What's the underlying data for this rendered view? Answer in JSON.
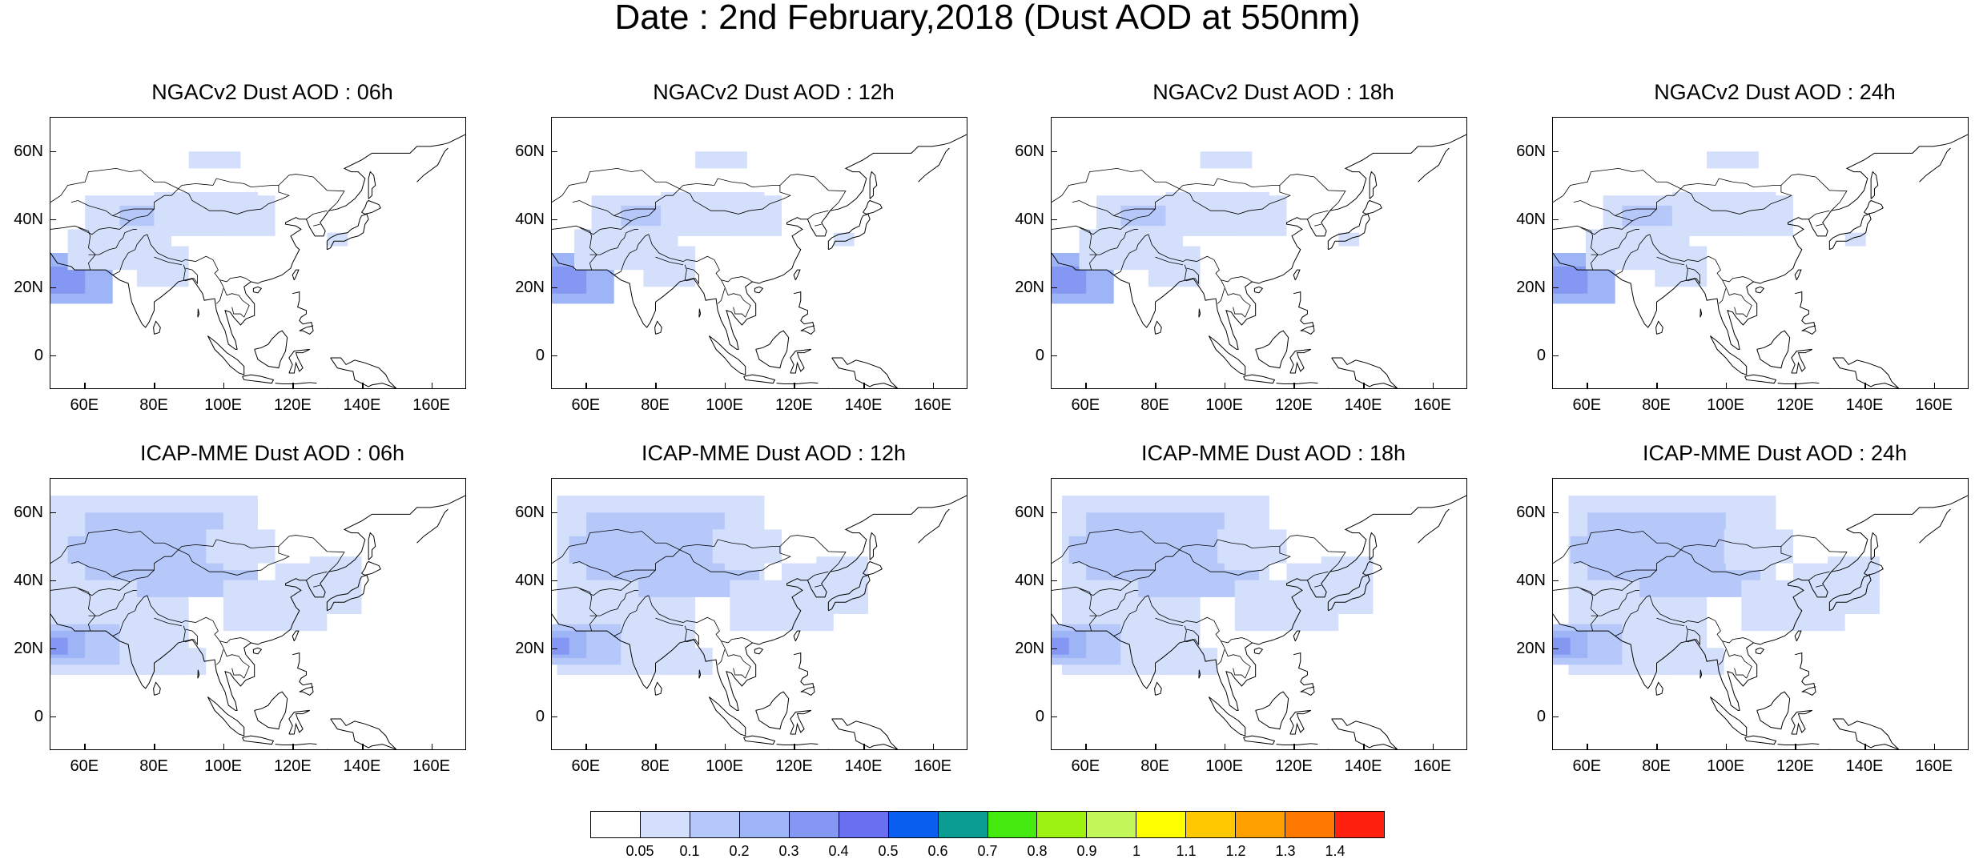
{
  "title": "Date : 2nd February,2018 (Dust AOD at 550nm)",
  "axes": {
    "lat_ticks": [
      "60N",
      "40N",
      "20N",
      "0"
    ],
    "lat_values": [
      60,
      40,
      20,
      0
    ],
    "lon_ticks": [
      "60E",
      "80E",
      "100E",
      "120E",
      "140E",
      "160E"
    ],
    "lon_values": [
      60,
      80,
      100,
      120,
      140,
      160
    ],
    "lon_range": [
      50,
      170
    ],
    "lat_range": [
      -10,
      70
    ]
  },
  "panels": [
    {
      "title": "NGACv2 Dust AOD : 06h"
    },
    {
      "title": "NGACv2 Dust AOD : 12h"
    },
    {
      "title": "NGACv2 Dust AOD : 18h"
    },
    {
      "title": "NGACv2 Dust AOD : 24h"
    },
    {
      "title": "ICAP-MME Dust AOD : 06h"
    },
    {
      "title": "ICAP-MME Dust AOD : 12h"
    },
    {
      "title": "ICAP-MME Dust AOD : 18h"
    },
    {
      "title": "ICAP-MME Dust AOD : 24h"
    }
  ],
  "colorbar": {
    "labels": [
      "0.05",
      "0.1",
      "0.2",
      "0.3",
      "0.4",
      "0.5",
      "0.6",
      "0.7",
      "0.8",
      "0.9",
      "1",
      "1.1",
      "1.2",
      "1.3",
      "1.4"
    ],
    "colors": [
      "#ffffff",
      "#d4e0fb",
      "#b6c8f9",
      "#9db4f6",
      "#8397f3",
      "#6a6ff1",
      "#0a5ff0",
      "#0b9c94",
      "#44ea10",
      "#9ef212",
      "#c4f75a",
      "#ffff00",
      "#ffc800",
      "#ffa000",
      "#ff7800",
      "#ff2010"
    ]
  }
}
